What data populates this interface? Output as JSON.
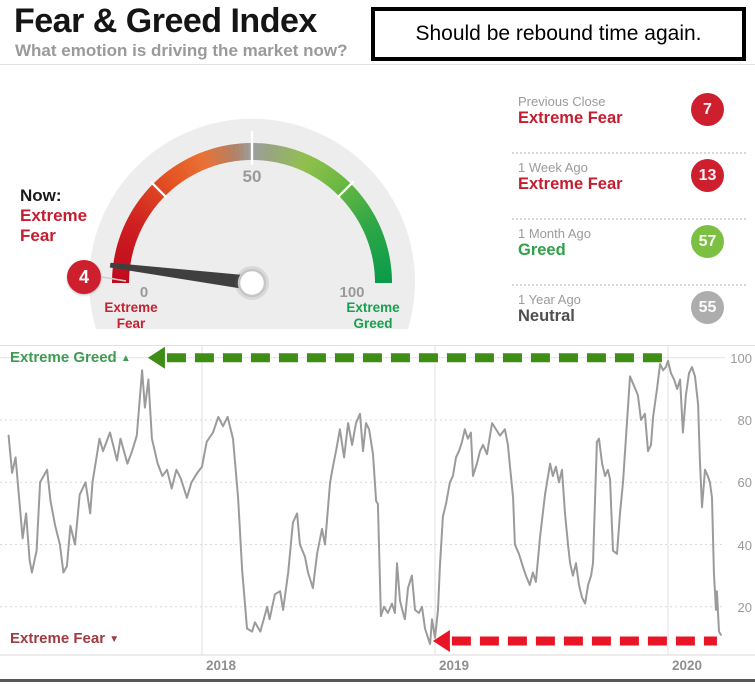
{
  "header": {
    "title": "Fear & Greed Index",
    "subtitle": "What emotion is driving the market now?"
  },
  "annotation": {
    "text": "Should be rebound time again."
  },
  "gauge": {
    "now_label": "Now:",
    "now_status": "Extreme Fear",
    "value": 4,
    "value_display": "4",
    "min_label": "0",
    "mid_label": "50",
    "max_label": "100",
    "left_label": "Extreme Fear",
    "right_label": "Extreme Greed",
    "badge_color": "#ce1f2f",
    "needle_color": "#3f3f3f",
    "background_color": "#ededed",
    "arc_stops": [
      [
        0,
        "#bf0a1e"
      ],
      [
        15,
        "#cf2021"
      ],
      [
        28,
        "#e35122"
      ],
      [
        38,
        "#ea7135"
      ],
      [
        46,
        "#b08268"
      ],
      [
        50,
        "#9e9e9e"
      ],
      [
        55,
        "#97a77d"
      ],
      [
        63,
        "#92bf4e"
      ],
      [
        72,
        "#6fba43"
      ],
      [
        85,
        "#30a746"
      ],
      [
        100,
        "#0a9b4b"
      ]
    ]
  },
  "history": {
    "rows": [
      {
        "label": "Previous Close",
        "status": "Extreme Fear",
        "value": "7",
        "status_color": "#c41d30",
        "badge_color": "#ce1f2f"
      },
      {
        "label": "1 Week Ago",
        "status": "Extreme Fear",
        "value": "13",
        "status_color": "#c41d30",
        "badge_color": "#ce1f2f"
      },
      {
        "label": "1 Month Ago",
        "status": "Greed",
        "value": "57",
        "status_color": "#2fa148",
        "badge_color": "#7bc043"
      },
      {
        "label": "1 Year Ago",
        "status": "Neutral",
        "value": "55",
        "status_color": "#4f4f4f",
        "badge_color": "#adadad"
      }
    ]
  },
  "chart_data": {
    "type": "line",
    "title": "",
    "series_name": "Fear & Greed Index over time",
    "line_color": "#9b9b9b",
    "ylim": [
      0,
      100
    ],
    "x_domain": [
      2017.17,
      2020.23
    ],
    "grid": "horizontal dotted, vertical year lines",
    "y_ticks": [
      {
        "v": 100,
        "label": "100"
      },
      {
        "v": 80,
        "label": "80"
      },
      {
        "v": 60,
        "label": "60"
      },
      {
        "v": 40,
        "label": "40"
      },
      {
        "v": 20,
        "label": "20"
      }
    ],
    "x_ticks": [
      {
        "t": 2018,
        "label": "2018"
      },
      {
        "t": 2019,
        "label": "2019"
      },
      {
        "t": 2020,
        "label": "2020"
      }
    ],
    "corner_top_label": "Extreme Greed",
    "corner_bottom_label": "Extreme Fear",
    "corner_top_color": "#3f9b53",
    "corner_bottom_color": "#a23a42",
    "up_triangle": "▲",
    "down_triangle": "▼",
    "annotations": [
      {
        "id": "greed-arrow",
        "shape": "dashed-arrow-left",
        "color": "#3e8d15",
        "value": 100,
        "tip_t": 2017.768,
        "from_t": 2020.009
      },
      {
        "id": "fear-arrow",
        "shape": "dashed-arrow-left",
        "color": "#e91527",
        "value": 9,
        "tip_t": 2018.991,
        "from_t": 2020.21
      }
    ],
    "points": [
      [
        2017.17,
        75
      ],
      [
        2017.185,
        63
      ],
      [
        2017.2,
        68
      ],
      [
        2017.23,
        42
      ],
      [
        2017.245,
        50
      ],
      [
        2017.26,
        35
      ],
      [
        2017.27,
        31
      ],
      [
        2017.29,
        38
      ],
      [
        2017.305,
        60
      ],
      [
        2017.335,
        64
      ],
      [
        2017.35,
        54
      ],
      [
        2017.37,
        46
      ],
      [
        2017.39,
        40
      ],
      [
        2017.405,
        31
      ],
      [
        2017.42,
        33
      ],
      [
        2017.435,
        46
      ],
      [
        2017.455,
        40
      ],
      [
        2017.475,
        56
      ],
      [
        2017.5,
        60
      ],
      [
        2017.52,
        50
      ],
      [
        2017.53,
        60
      ],
      [
        2017.56,
        74
      ],
      [
        2017.575,
        70
      ],
      [
        2017.605,
        76
      ],
      [
        2017.635,
        67
      ],
      [
        2017.65,
        74
      ],
      [
        2017.68,
        66
      ],
      [
        2017.7,
        70
      ],
      [
        2017.72,
        75
      ],
      [
        2017.743,
        96
      ],
      [
        2017.755,
        84
      ],
      [
        2017.77,
        93
      ],
      [
        2017.785,
        74
      ],
      [
        2017.81,
        66
      ],
      [
        2017.83,
        62
      ],
      [
        2017.85,
        64
      ],
      [
        2017.87,
        58
      ],
      [
        2017.89,
        64
      ],
      [
        2017.91,
        61
      ],
      [
        2017.935,
        55
      ],
      [
        2017.955,
        60
      ],
      [
        2017.98,
        63
      ],
      [
        2018.0,
        65
      ],
      [
        2018.02,
        73
      ],
      [
        2018.047,
        76
      ],
      [
        2018.07,
        81
      ],
      [
        2018.09,
        78
      ],
      [
        2018.11,
        81
      ],
      [
        2018.133,
        74
      ],
      [
        2018.155,
        55
      ],
      [
        2018.172,
        32
      ],
      [
        2018.193,
        13
      ],
      [
        2018.215,
        12
      ],
      [
        2018.227,
        15
      ],
      [
        2018.25,
        12
      ],
      [
        2018.28,
        20
      ],
      [
        2018.29,
        16
      ],
      [
        2018.313,
        24
      ],
      [
        2018.335,
        25
      ],
      [
        2018.348,
        19
      ],
      [
        2018.37,
        31
      ],
      [
        2018.39,
        47
      ],
      [
        2018.408,
        50
      ],
      [
        2018.42,
        40
      ],
      [
        2018.442,
        36
      ],
      [
        2018.455,
        31
      ],
      [
        2018.476,
        26
      ],
      [
        2018.494,
        37
      ],
      [
        2018.515,
        45
      ],
      [
        2018.528,
        40
      ],
      [
        2018.55,
        60
      ],
      [
        2018.562,
        65
      ],
      [
        2018.575,
        70
      ],
      [
        2018.592,
        77
      ],
      [
        2018.61,
        68
      ],
      [
        2018.627,
        79
      ],
      [
        2018.644,
        72
      ],
      [
        2018.661,
        79
      ],
      [
        2018.678,
        82
      ],
      [
        2018.691,
        70
      ],
      [
        2018.704,
        79
      ],
      [
        2018.717,
        77
      ],
      [
        2018.734,
        69
      ],
      [
        2018.747,
        54
      ],
      [
        2018.755,
        53
      ],
      [
        2018.768,
        17
      ],
      [
        2018.781,
        20
      ],
      [
        2018.798,
        18
      ],
      [
        2018.815,
        21
      ],
      [
        2018.828,
        18
      ],
      [
        2018.837,
        34
      ],
      [
        2018.85,
        22
      ],
      [
        2018.863,
        18
      ],
      [
        2018.871,
        16
      ],
      [
        2018.884,
        26
      ],
      [
        2018.901,
        30
      ],
      [
        2018.914,
        19
      ],
      [
        2018.931,
        18
      ],
      [
        2018.944,
        20
      ],
      [
        2018.957,
        13
      ],
      [
        2018.97,
        10
      ],
      [
        2018.979,
        8
      ],
      [
        2018.987,
        16
      ],
      [
        2019.0,
        10
      ],
      [
        2019.013,
        19
      ],
      [
        2019.021,
        33
      ],
      [
        2019.034,
        49
      ],
      [
        2019.047,
        53
      ],
      [
        2019.064,
        60
      ],
      [
        2019.077,
        62
      ],
      [
        2019.09,
        68
      ],
      [
        2019.103,
        70
      ],
      [
        2019.116,
        73
      ],
      [
        2019.128,
        77
      ],
      [
        2019.141,
        74
      ],
      [
        2019.154,
        76
      ],
      [
        2019.163,
        62
      ],
      [
        2019.18,
        66
      ],
      [
        2019.193,
        70
      ],
      [
        2019.206,
        72
      ],
      [
        2019.223,
        69
      ],
      [
        2019.236,
        75
      ],
      [
        2019.245,
        79
      ],
      [
        2019.262,
        77
      ],
      [
        2019.279,
        75
      ],
      [
        2019.3,
        77
      ],
      [
        2019.313,
        72
      ],
      [
        2019.322,
        65
      ],
      [
        2019.335,
        55
      ],
      [
        2019.343,
        40
      ],
      [
        2019.36,
        37
      ],
      [
        2019.377,
        33
      ],
      [
        2019.39,
        30
      ],
      [
        2019.407,
        27
      ],
      [
        2019.42,
        31
      ],
      [
        2019.433,
        28
      ],
      [
        2019.45,
        42
      ],
      [
        2019.472,
        56
      ],
      [
        2019.494,
        66
      ],
      [
        2019.506,
        62
      ],
      [
        2019.519,
        65
      ],
      [
        2019.532,
        60
      ],
      [
        2019.545,
        64
      ],
      [
        2019.558,
        50
      ],
      [
        2019.571,
        40
      ],
      [
        2019.58,
        34
      ],
      [
        2019.592,
        30
      ],
      [
        2019.605,
        34
      ],
      [
        2019.618,
        27
      ],
      [
        2019.631,
        23
      ],
      [
        2019.644,
        21
      ],
      [
        2019.657,
        27
      ],
      [
        2019.67,
        30
      ],
      [
        2019.678,
        34
      ],
      [
        2019.687,
        55
      ],
      [
        2019.695,
        73
      ],
      [
        2019.704,
        74
      ],
      [
        2019.717,
        66
      ],
      [
        2019.73,
        62
      ],
      [
        2019.742,
        64
      ],
      [
        2019.751,
        61
      ],
      [
        2019.764,
        38
      ],
      [
        2019.781,
        37
      ],
      [
        2019.794,
        50
      ],
      [
        2019.807,
        60
      ],
      [
        2019.82,
        75
      ],
      [
        2019.837,
        94
      ],
      [
        2019.854,
        91
      ],
      [
        2019.871,
        88
      ],
      [
        2019.884,
        80
      ],
      [
        2019.901,
        82
      ],
      [
        2019.914,
        70
      ],
      [
        2019.927,
        72
      ],
      [
        2019.936,
        81
      ],
      [
        2019.953,
        90
      ],
      [
        2019.966,
        98
      ],
      [
        2019.979,
        96
      ],
      [
        2019.991,
        97
      ],
      [
        2020.0,
        99
      ],
      [
        2020.013,
        95
      ],
      [
        2020.026,
        93
      ],
      [
        2020.039,
        90
      ],
      [
        2020.052,
        93
      ],
      [
        2020.064,
        76
      ],
      [
        2020.077,
        88
      ],
      [
        2020.09,
        95
      ],
      [
        2020.103,
        97
      ],
      [
        2020.116,
        94
      ],
      [
        2020.129,
        85
      ],
      [
        2020.137,
        67
      ],
      [
        2020.146,
        52
      ],
      [
        2020.159,
        64
      ],
      [
        2020.171,
        62
      ],
      [
        2020.18,
        60
      ],
      [
        2020.189,
        55
      ],
      [
        2020.197,
        31
      ],
      [
        2020.206,
        19
      ],
      [
        2020.21,
        25
      ],
      [
        2020.219,
        12
      ],
      [
        2020.227,
        11
      ]
    ]
  }
}
